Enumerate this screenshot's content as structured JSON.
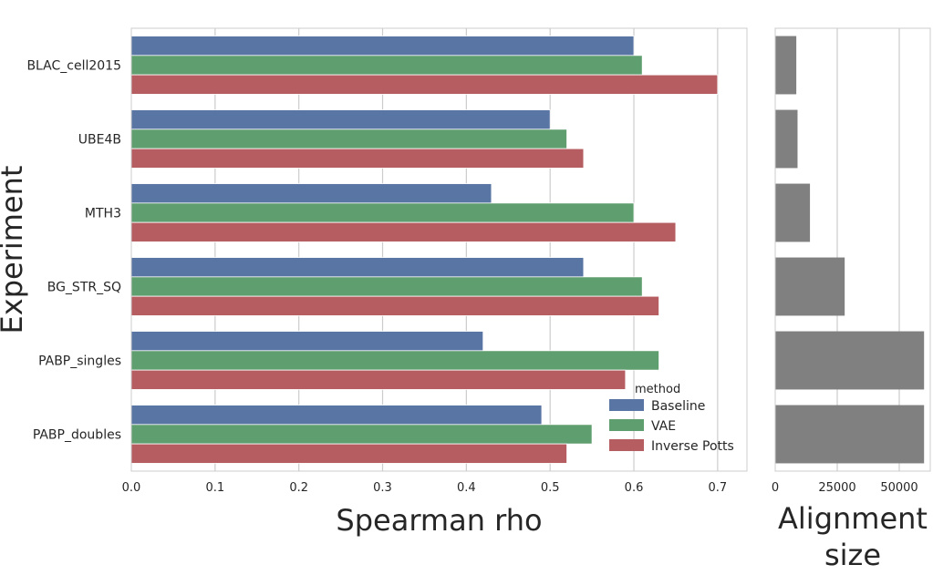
{
  "chart_data": [
    {
      "type": "bar",
      "orientation": "horizontal",
      "categories": [
        "BLAC_cell2015",
        "UBE4B",
        "MTH3",
        "BG_STR_SQ",
        "PABP_singles",
        "PABP_doubles"
      ],
      "series": [
        {
          "name": "Baseline",
          "color": "#5975a4",
          "values": [
            0.6,
            0.5,
            0.43,
            0.54,
            0.42,
            0.49
          ]
        },
        {
          "name": "VAE",
          "color": "#5f9e6e",
          "values": [
            0.61,
            0.52,
            0.6,
            0.61,
            0.63,
            0.55
          ]
        },
        {
          "name": "Inverse Potts",
          "color": "#b55d60",
          "values": [
            0.7,
            0.54,
            0.65,
            0.63,
            0.59,
            0.52
          ]
        }
      ],
      "xlabel": "Spearman rho",
      "ylabel": "Experiment",
      "xlim": [
        0,
        0.735
      ],
      "xticks": [
        "0.0",
        "0.1",
        "0.2",
        "0.3",
        "0.4",
        "0.5",
        "0.6",
        "0.7"
      ],
      "legend": {
        "title": "method",
        "position": "lower-right"
      },
      "grid": "vertical"
    },
    {
      "type": "bar",
      "orientation": "horizontal",
      "categories": [
        "BLAC_cell2015",
        "UBE4B",
        "MTH3",
        "BG_STR_SQ",
        "PABP_singles",
        "PABP_doubles"
      ],
      "series": [
        {
          "color": "#808080",
          "values": [
            8500,
            9000,
            14000,
            28000,
            60000,
            60000
          ]
        }
      ],
      "xlabel": "Alignment size",
      "xlim": [
        0,
        62500
      ],
      "xticks": [
        "0",
        "25000",
        "50000"
      ],
      "grid": "vertical"
    }
  ]
}
